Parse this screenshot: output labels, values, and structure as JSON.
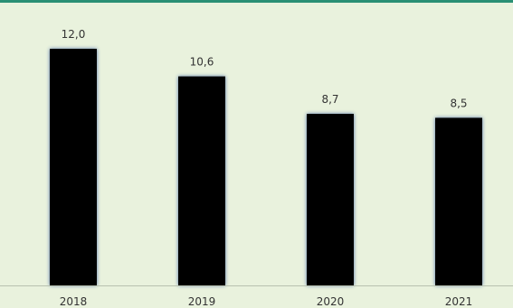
{
  "chart_data": {
    "type": "bar",
    "categories": [
      "2018",
      "2019",
      "2020",
      "2021"
    ],
    "values": [
      12.0,
      10.6,
      8.7,
      8.5
    ],
    "value_labels": [
      "12,0",
      "10,6",
      "8,7",
      "8,5"
    ],
    "title": "",
    "xlabel": "",
    "ylabel": "",
    "ylim": [
      0,
      13.1
    ],
    "grid": false,
    "legend": "none",
    "colors": {
      "bar": "#000000",
      "bar_glow": "#3b5fa5",
      "background": "#e9f2dd",
      "accent": "#2a8f74",
      "text": "#333333"
    }
  }
}
